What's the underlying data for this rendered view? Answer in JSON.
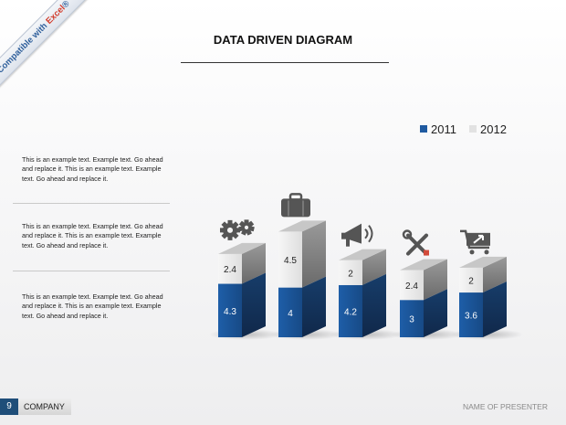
{
  "badge": {
    "text_before": "Compatible with ",
    "text_highlight": "Excel",
    "text_after": "®"
  },
  "title": "DATA DRIVEN DIAGRAM",
  "paragraphs": [
    "This is an example text. Example text. Go ahead and replace it. This is an example text. Example text. Go ahead and replace it.",
    "This is an example text. Example text. Go ahead and replace it. This is an example text. Example text. Go ahead and replace it.",
    "This is an example text. Example text. Go ahead and replace it. This is an example text. Example text. Go ahead and replace it."
  ],
  "footer": {
    "page_number": "9",
    "company": "COMPANY",
    "presenter": "NAME OF PRESENTER"
  },
  "icons": [
    "gears-icon",
    "briefcase-icon",
    "megaphone-icon",
    "tools-icon",
    "shopping-cart-icon"
  ],
  "colors": {
    "series_2011": "#1f5aa0",
    "series_2012": "#dcdcdc",
    "footer_accent": "#1f4e79"
  },
  "chart_data": {
    "type": "bar",
    "stacked": true,
    "three_d": true,
    "categories": [
      "",
      "",
      "",
      "",
      ""
    ],
    "series": [
      {
        "name": "2011",
        "values": [
          4.3,
          4,
          4.2,
          3,
          3.6
        ],
        "color": "#1f5aa0"
      },
      {
        "name": "2012",
        "values": [
          2.4,
          4.5,
          2,
          2.4,
          2
        ],
        "color": "#dcdcdc"
      }
    ],
    "title": "",
    "legend_position": "top-right",
    "data_labels": true
  }
}
